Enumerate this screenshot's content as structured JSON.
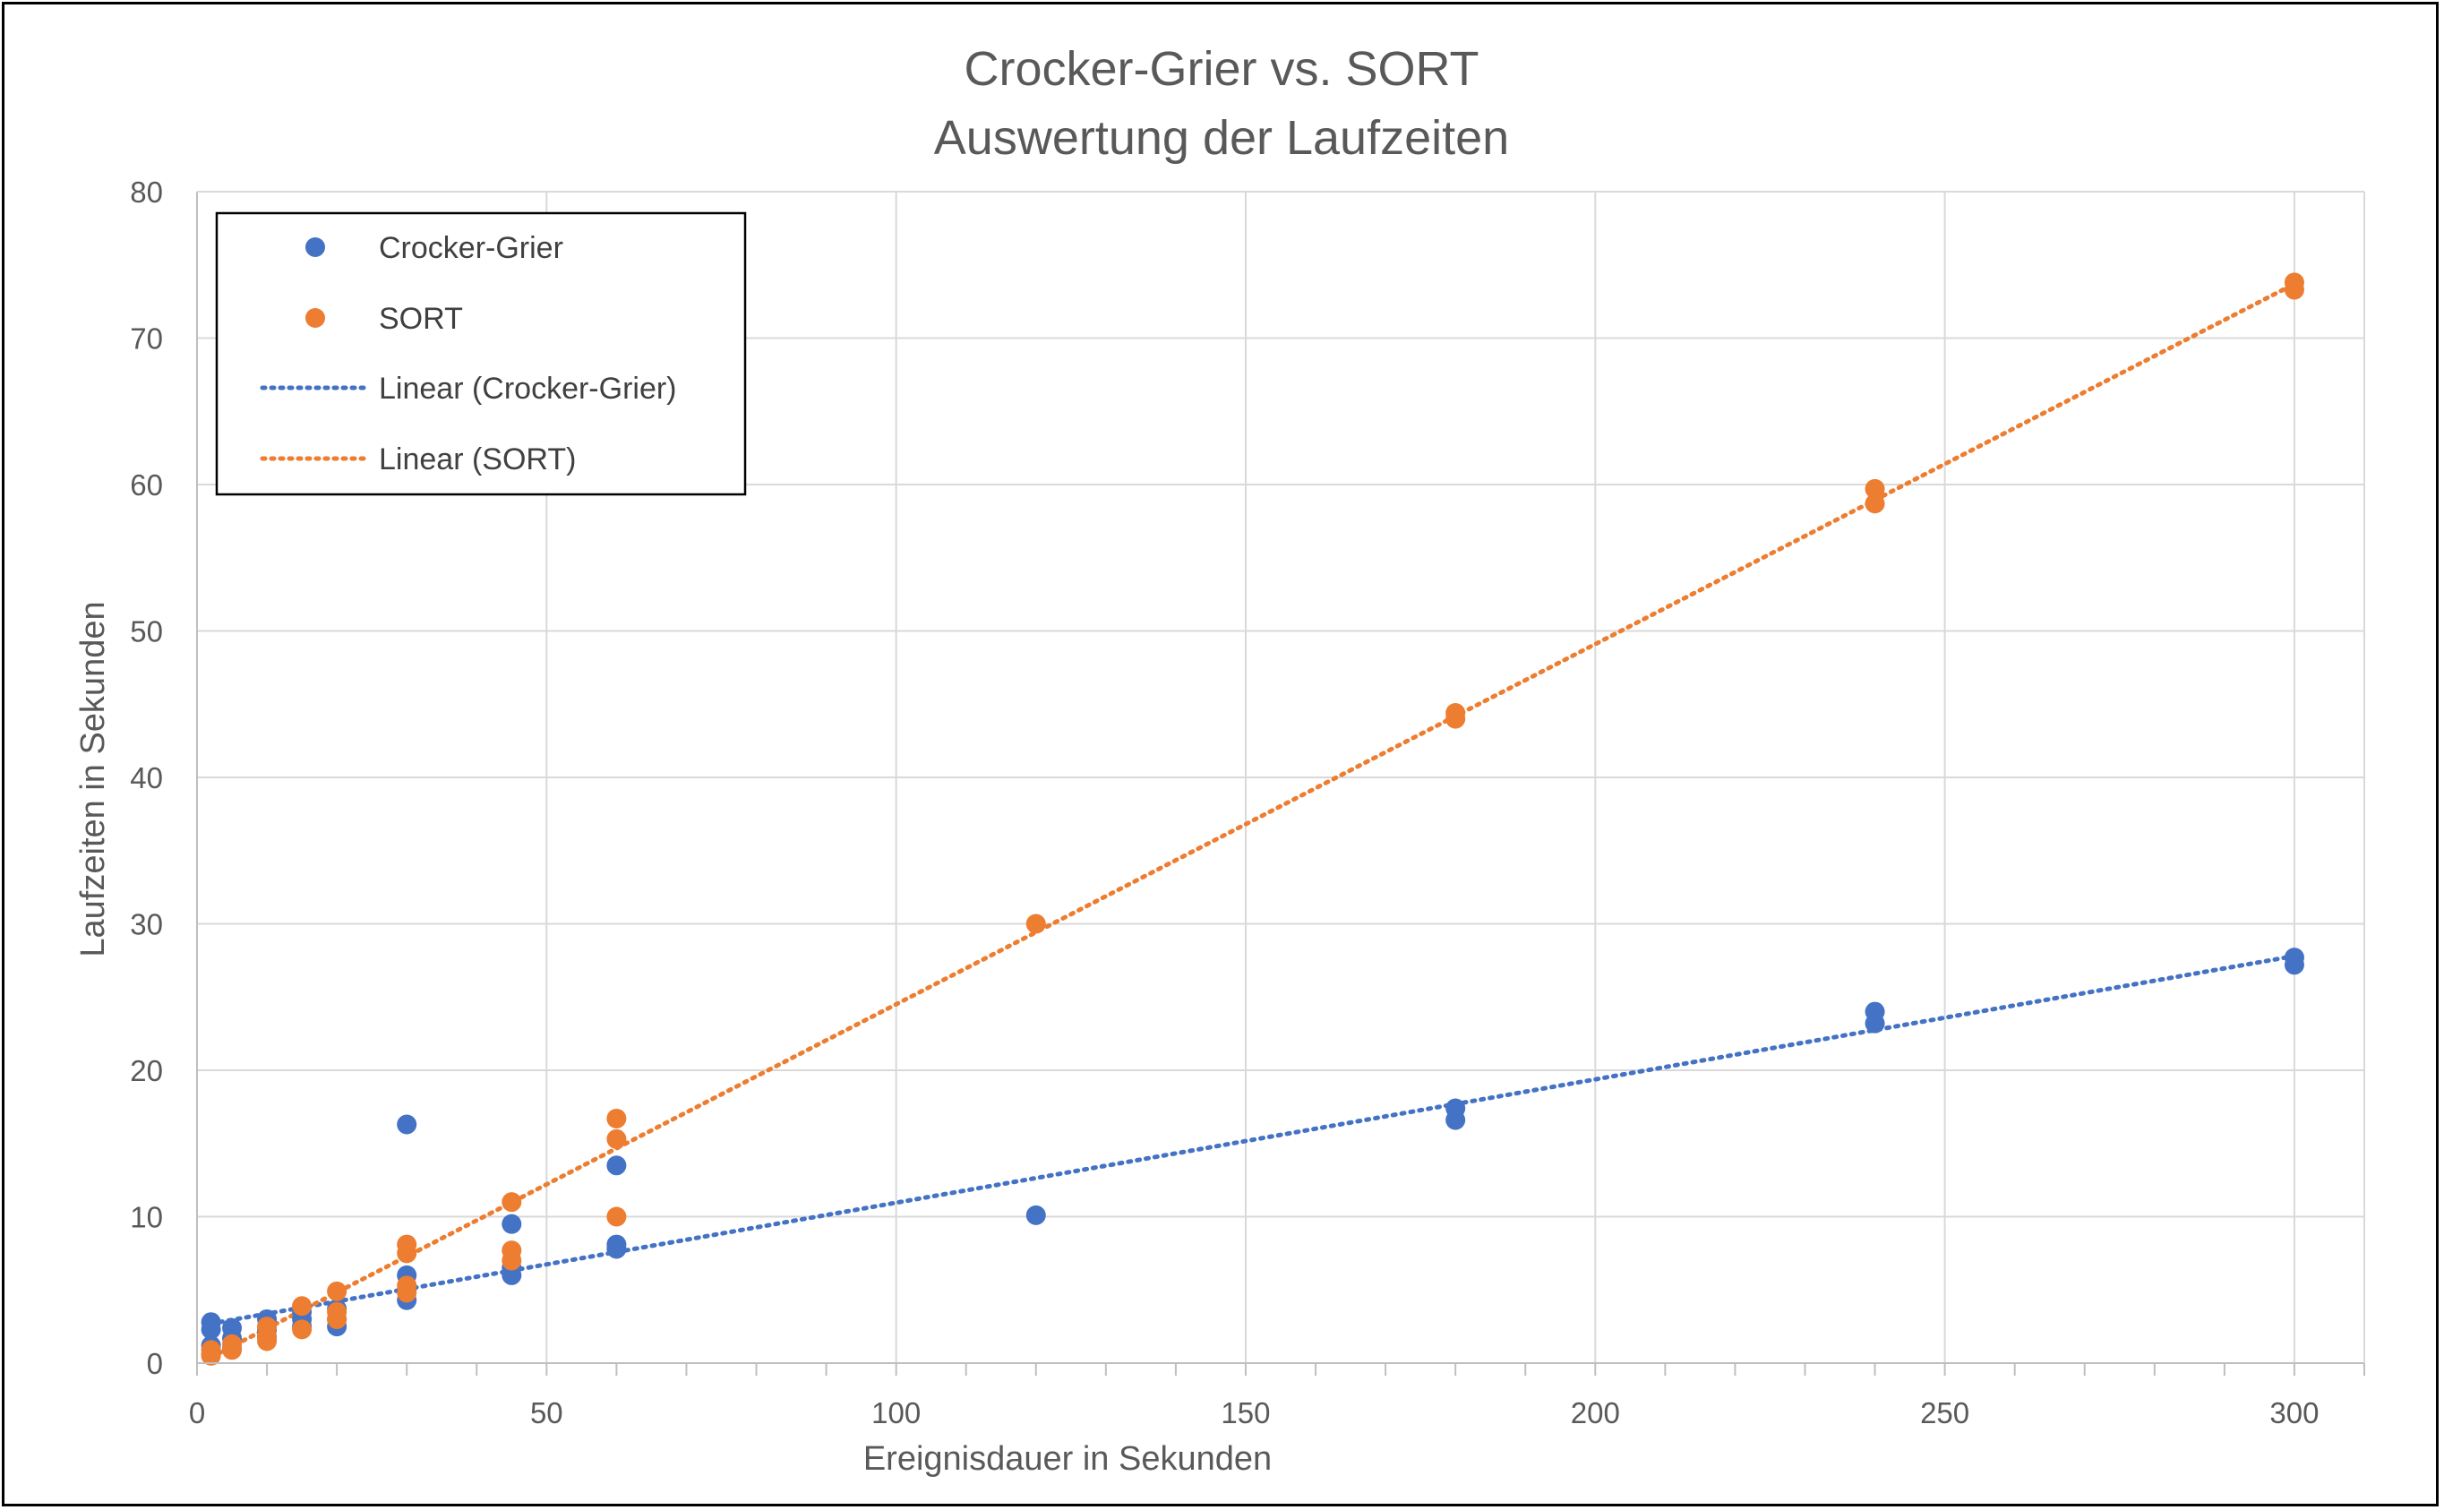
{
  "chart_data": {
    "type": "scatter",
    "title": [
      "Crocker-Grier vs. SORT",
      "Auswertung der Laufzeiten"
    ],
    "xlabel": "Ereignisdauer in Sekunden",
    "ylabel": "Laufzeiten in Sekunden",
    "xlim": [
      0,
      310
    ],
    "ylim": [
      0,
      80
    ],
    "xticks": [
      0,
      50,
      100,
      150,
      200,
      250,
      300
    ],
    "yticks": [
      0,
      10,
      20,
      30,
      40,
      50,
      60,
      70,
      80
    ],
    "grid": true,
    "legend_position": "top-left",
    "series": [
      {
        "name": "Crocker-Grier",
        "color": "#4472C4",
        "points": [
          [
            2,
            2.8
          ],
          [
            2,
            2.3
          ],
          [
            2,
            1.2
          ],
          [
            2,
            0.6
          ],
          [
            5,
            2.4
          ],
          [
            5,
            1.7
          ],
          [
            5,
            1.0
          ],
          [
            10,
            3.0
          ],
          [
            10,
            2.3
          ],
          [
            10,
            1.8
          ],
          [
            15,
            3.5
          ],
          [
            15,
            3.0
          ],
          [
            15,
            2.5
          ],
          [
            20,
            3.7
          ],
          [
            20,
            3.0
          ],
          [
            20,
            2.5
          ],
          [
            30,
            16.3
          ],
          [
            30,
            6.0
          ],
          [
            30,
            5.0
          ],
          [
            30,
            4.3
          ],
          [
            45,
            9.5
          ],
          [
            45,
            6.5
          ],
          [
            45,
            6.0
          ],
          [
            60,
            13.5
          ],
          [
            60,
            8.1
          ],
          [
            60,
            7.8
          ],
          [
            120,
            10.1
          ],
          [
            180,
            17.4
          ],
          [
            180,
            16.6
          ],
          [
            240,
            24.0
          ],
          [
            240,
            23.2
          ],
          [
            300,
            27.7
          ],
          [
            300,
            27.2
          ]
        ]
      },
      {
        "name": "SORT",
        "color": "#ED7D31",
        "points": [
          [
            2,
            0.9
          ],
          [
            2,
            0.5
          ],
          [
            5,
            1.3
          ],
          [
            5,
            0.9
          ],
          [
            10,
            2.5
          ],
          [
            10,
            1.8
          ],
          [
            10,
            1.5
          ],
          [
            15,
            3.9
          ],
          [
            15,
            2.3
          ],
          [
            20,
            4.9
          ],
          [
            20,
            3.5
          ],
          [
            20,
            3.0
          ],
          [
            30,
            8.1
          ],
          [
            30,
            7.5
          ],
          [
            30,
            5.3
          ],
          [
            30,
            4.8
          ],
          [
            45,
            11.0
          ],
          [
            45,
            7.7
          ],
          [
            45,
            7.0
          ],
          [
            60,
            16.7
          ],
          [
            60,
            15.3
          ],
          [
            60,
            10.0
          ],
          [
            120,
            30.0
          ],
          [
            180,
            44.4
          ],
          [
            180,
            44.0
          ],
          [
            240,
            59.7
          ],
          [
            240,
            58.7
          ],
          [
            300,
            73.8
          ],
          [
            300,
            73.3
          ]
        ]
      }
    ],
    "trendlines": [
      {
        "name": "Linear (Crocker-Grier)",
        "color": "#4472C4",
        "style": "dotted",
        "x": [
          2,
          300
        ],
        "y": [
          2.7,
          27.8
        ]
      },
      {
        "name": "Linear (SORT)",
        "color": "#ED7D31",
        "style": "dotted",
        "x": [
          2,
          300
        ],
        "y": [
          0.4,
          73.7
        ]
      }
    ],
    "legend": [
      "Crocker-Grier",
      "SORT",
      "Linear (Crocker-Grier)",
      "Linear (SORT)"
    ]
  }
}
